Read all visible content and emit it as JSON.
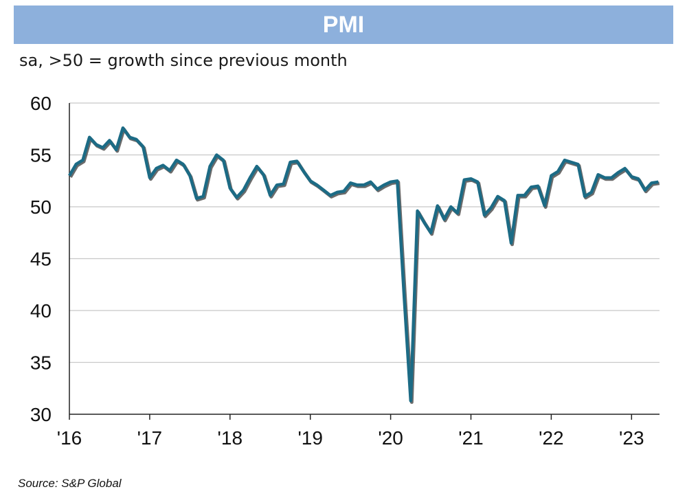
{
  "header": {
    "title": "PMI"
  },
  "subtitle": "sa, >50 = growth since previous month",
  "source": "Source: S&P Global",
  "colors": {
    "banner": "#8db0dc",
    "line": "#1c6b85",
    "shadow": "#3a3a3a",
    "grid": "#c8c8c8"
  },
  "chart_data": {
    "type": "line",
    "title": "PMI",
    "subtitle": "sa, >50 = growth since previous month",
    "xlabel": "",
    "ylabel": "",
    "ylim": [
      30,
      60
    ],
    "yticks": [
      30,
      35,
      40,
      45,
      50,
      55,
      60
    ],
    "xticks": [
      "'16",
      "'17",
      "'18",
      "'19",
      "'20",
      "'21",
      "'22",
      "'23"
    ],
    "xlim": [
      "2016-01",
      "2023-05"
    ],
    "grid": true,
    "series": [
      {
        "x": [
          "2016-01",
          "2016-02",
          "2016-03",
          "2016-04",
          "2016-05",
          "2016-06",
          "2016-07",
          "2016-08",
          "2016-09",
          "2016-10",
          "2016-11",
          "2016-12",
          "2017-01",
          "2017-02",
          "2017-03",
          "2017-04",
          "2017-05",
          "2017-06",
          "2017-07",
          "2017-08",
          "2017-09",
          "2017-10",
          "2017-11",
          "2017-12",
          "2018-01",
          "2018-02",
          "2018-03",
          "2018-04",
          "2018-05",
          "2018-06",
          "2018-07",
          "2018-08",
          "2018-09",
          "2018-10",
          "2018-11",
          "2018-12",
          "2019-01",
          "2019-02",
          "2019-03",
          "2019-04",
          "2019-05",
          "2019-06",
          "2019-07",
          "2019-08",
          "2019-09",
          "2019-10",
          "2019-11",
          "2019-12",
          "2020-01",
          "2020-02",
          "2020-03",
          "2020-04",
          "2020-05",
          "2020-06",
          "2020-07",
          "2020-08",
          "2020-09",
          "2020-10",
          "2020-11",
          "2020-12",
          "2021-01",
          "2021-02",
          "2021-03",
          "2021-04",
          "2021-05",
          "2021-06",
          "2021-07",
          "2021-08",
          "2021-09",
          "2021-10",
          "2021-11",
          "2021-12",
          "2022-01",
          "2022-02",
          "2022-03",
          "2022-04",
          "2022-05",
          "2022-06",
          "2022-07",
          "2022-08",
          "2022-09",
          "2022-10",
          "2022-11",
          "2022-12",
          "2023-01",
          "2023-02",
          "2023-03",
          "2023-04",
          "2023-05"
        ],
        "values": [
          53.0,
          54.1,
          54.5,
          56.7,
          56.0,
          55.7,
          56.4,
          55.5,
          57.6,
          56.7,
          56.5,
          55.8,
          52.8,
          53.7,
          54.0,
          53.5,
          54.5,
          54.1,
          53.0,
          50.8,
          51.0,
          53.9,
          55.0,
          54.5,
          51.8,
          50.9,
          51.6,
          52.8,
          53.9,
          53.1,
          51.1,
          52.1,
          52.2,
          54.3,
          54.4,
          53.4,
          52.5,
          52.1,
          51.6,
          51.1,
          51.4,
          51.5,
          52.3,
          52.1,
          52.1,
          52.4,
          51.7,
          52.1,
          52.4,
          52.5,
          41.5,
          31.3,
          49.6,
          48.5,
          47.5,
          50.1,
          48.8,
          50.0,
          49.4,
          52.6,
          52.7,
          52.4,
          49.2,
          49.9,
          51.0,
          50.6,
          46.5,
          51.1,
          51.1,
          51.9,
          52.0,
          50.1,
          53.0,
          53.4,
          54.5,
          54.3,
          54.1,
          51.0,
          51.4,
          53.1,
          52.8,
          52.8,
          53.3,
          53.7,
          52.9,
          52.7,
          51.6,
          52.3,
          52.4
        ]
      }
    ]
  }
}
